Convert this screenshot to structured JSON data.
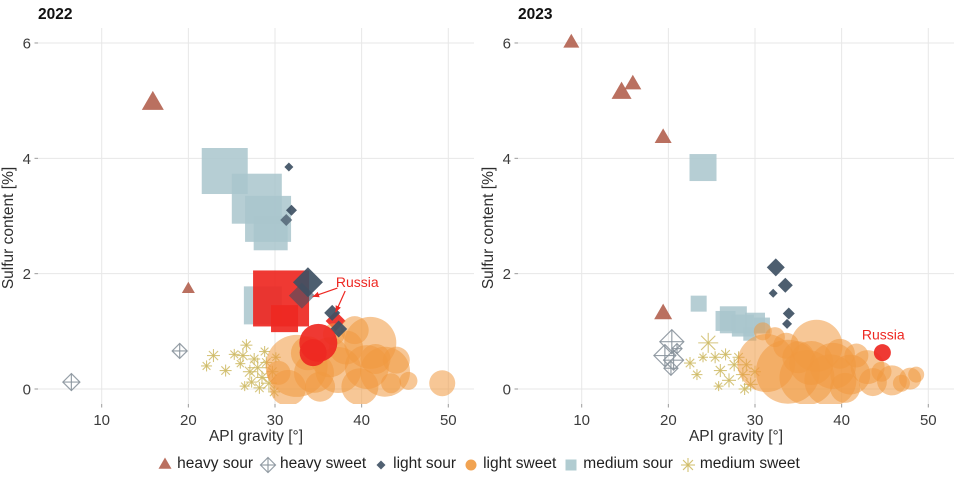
{
  "colors": {
    "heavy_sour": "#b2604f",
    "heavy_sweet": "#8b959d",
    "light_sour": "#3e5063",
    "light_sweet": "#f0993f",
    "medium_sour": "#a9c6cc",
    "medium_sweet": "#cfbb66",
    "russia": "#ee2822",
    "grid": "#e7e7e7",
    "tick": "#9a9a9a"
  },
  "legend": {
    "items": [
      {
        "label": "heavy sour",
        "marker": "triangle",
        "color_key": "heavy_sour"
      },
      {
        "label": "heavy sweet",
        "marker": "diamond-plus",
        "color_key": "heavy_sweet"
      },
      {
        "label": "light sour",
        "marker": "diamond",
        "color_key": "light_sour"
      },
      {
        "label": "light sweet",
        "marker": "circle",
        "color_key": "light_sweet"
      },
      {
        "label": "medium sour",
        "marker": "square",
        "color_key": "medium_sour"
      },
      {
        "label": "medium sweet",
        "marker": "asterisk",
        "color_key": "medium_sweet"
      }
    ]
  },
  "chart_data": [
    {
      "type": "scatter",
      "title": "2022",
      "xlabel": "API gravity [°]",
      "ylabel": "Sulfur content [%]",
      "xticks": [
        10,
        20,
        30,
        40,
        50
      ],
      "yticks": [
        0,
        2,
        4,
        6
      ],
      "xlim": [
        2.7,
        53
      ],
      "ylim": [
        -0.26,
        6.26
      ],
      "grid": true,
      "series": [
        {
          "name": "medium sour",
          "marker": "square",
          "color_key": "medium_sour",
          "opacity": 0.85,
          "points": [
            [
              24.2,
              3.78,
              46
            ],
            [
              27.9,
              3.3,
              50
            ],
            [
              29.2,
              2.95,
              46
            ],
            [
              29.5,
              2.7,
              34
            ],
            [
              28.6,
              1.45,
              38
            ]
          ]
        },
        {
          "name": "heavy sweet",
          "marker": "diamond-plus",
          "color_key": "heavy_sweet",
          "opacity": 0.9,
          "points": [
            [
              6.5,
              0.12,
              17
            ],
            [
              19.0,
              0.66,
              15
            ]
          ]
        },
        {
          "name": "heavy sour",
          "marker": "triangle",
          "color_key": "heavy_sour",
          "opacity": 0.9,
          "points": [
            [
              15.9,
              4.95,
              22
            ],
            [
              20.0,
              1.73,
              13
            ]
          ]
        },
        {
          "name": "medium sweet",
          "marker": "asterisk",
          "color_key": "medium_sweet",
          "opacity": 0.85,
          "points": [
            [
              22.9,
              0.58,
              13
            ],
            [
              22.1,
              0.4,
              11
            ],
            [
              24.3,
              0.32,
              12
            ],
            [
              25.3,
              0.6,
              11
            ],
            [
              26.3,
              0.58,
              13
            ],
            [
              26.7,
              0.76,
              12
            ],
            [
              26.0,
              0.44,
              10
            ],
            [
              27.1,
              0.3,
              14
            ],
            [
              27.6,
              0.52,
              12
            ],
            [
              28.0,
              0.37,
              20
            ],
            [
              28.5,
              0.2,
              13
            ],
            [
              29.0,
              0.46,
              12
            ],
            [
              29.3,
              0.1,
              16
            ],
            [
              29.7,
              0.3,
              12
            ],
            [
              28.2,
              0.02,
              12
            ],
            [
              27.3,
              0.12,
              11
            ],
            [
              30.1,
              0.55,
              10
            ],
            [
              29.9,
              -0.05,
              12
            ],
            [
              28.8,
              0.65,
              11
            ],
            [
              26.5,
              0.05,
              10
            ]
          ]
        },
        {
          "name": "light sweet",
          "marker": "circle",
          "color_key": "light_sweet",
          "opacity": 0.55,
          "points": [
            [
              32.5,
              0.4,
              62
            ],
            [
              37.3,
              0.33,
              46
            ],
            [
              41.0,
              0.8,
              52
            ],
            [
              39.2,
              1.02,
              28
            ],
            [
              42.7,
              0.3,
              50
            ],
            [
              39.8,
              0.04,
              37
            ],
            [
              35.2,
              0.04,
              30
            ],
            [
              31.5,
              0.02,
              36
            ],
            [
              33.8,
              0.62,
              34
            ],
            [
              36.3,
              0.55,
              40
            ],
            [
              44.0,
              0.5,
              27
            ],
            [
              45.4,
              0.14,
              18
            ],
            [
              49.3,
              0.1,
              26
            ],
            [
              30.4,
              0.28,
              24
            ],
            [
              38.2,
              0.72,
              34
            ],
            [
              41.6,
              0.52,
              30
            ],
            [
              43.4,
              0.1,
              20
            ],
            [
              36.8,
              0.95,
              22
            ],
            [
              34.5,
              0.28,
              40
            ],
            [
              40.6,
              0.38,
              44
            ]
          ]
        },
        {
          "name": "light sour",
          "marker": "diamond",
          "color_key": "light_sour",
          "opacity": 0.92,
          "points": [
            [
              31.6,
              3.85,
              9
            ],
            [
              31.9,
              3.1,
              11
            ],
            [
              31.3,
              2.93,
              12,
              0.7
            ],
            [
              33.8,
              1.85,
              30
            ],
            [
              33.1,
              1.62,
              26,
              0.6
            ],
            [
              36.6,
              1.32,
              16
            ],
            [
              37.35,
              1.04,
              17
            ]
          ]
        }
      ],
      "russia": {
        "label": "Russia",
        "color_key": "russia",
        "x": 39.5,
        "y": 1.84,
        "markers": [
          [
            "square",
            30.7,
            1.57,
            56
          ],
          [
            "square",
            31.1,
            1.22,
            27
          ],
          [
            "diamond",
            37.0,
            1.18,
            20
          ],
          [
            "circle",
            35.0,
            0.8,
            38
          ],
          [
            "circle",
            34.4,
            0.63,
            27
          ]
        ],
        "arrows": [
          [
            37.2,
            1.75,
            34.35,
            1.6
          ],
          [
            38.1,
            1.7,
            37.0,
            1.33
          ]
        ]
      }
    },
    {
      "type": "scatter",
      "title": "2023",
      "xlabel": "API gravity [°]",
      "ylabel": "Sulfur content [%]",
      "xticks": [
        10,
        20,
        30,
        40,
        50
      ],
      "yticks": [
        0,
        2,
        4,
        6
      ],
      "xlim": [
        2.7,
        53
      ],
      "ylim": [
        -0.26,
        6.26
      ],
      "grid": true,
      "series": [
        {
          "name": "medium sour",
          "marker": "square",
          "color_key": "medium_sour",
          "opacity": 0.85,
          "points": [
            [
              24.0,
              3.84,
              27
            ],
            [
              23.5,
              1.48,
              16
            ],
            [
              26.6,
              1.18,
              20
            ],
            [
              27.5,
              1.2,
              27
            ],
            [
              28.6,
              1.1,
              22
            ],
            [
              30.0,
              1.15,
              20
            ],
            [
              30.8,
              1.1,
              16
            ],
            [
              29.4,
              0.95,
              13
            ]
          ]
        },
        {
          "name": "heavy sweet",
          "marker": "diamond-plus",
          "color_key": "heavy_sweet",
          "opacity": 0.9,
          "points": [
            [
              20.4,
              0.82,
              24
            ],
            [
              19.6,
              0.58,
              22
            ],
            [
              20.6,
              0.5,
              20
            ],
            [
              20.3,
              0.36,
              14
            ],
            [
              21.0,
              0.7,
              10
            ]
          ]
        },
        {
          "name": "heavy sour",
          "marker": "triangle",
          "color_key": "heavy_sour",
          "opacity": 0.9,
          "points": [
            [
              8.8,
              6.0,
              16
            ],
            [
              14.6,
              5.13,
              20
            ],
            [
              15.9,
              5.28,
              17
            ],
            [
              19.4,
              4.35,
              17
            ],
            [
              19.4,
              1.3,
              18
            ]
          ]
        },
        {
          "name": "medium sweet",
          "marker": "asterisk",
          "color_key": "medium_sweet",
          "opacity": 0.85,
          "points": [
            [
              24.6,
              0.8,
              20
            ],
            [
              22.5,
              0.45,
              12
            ],
            [
              23.3,
              0.25,
              11
            ],
            [
              25.4,
              0.55,
              12
            ],
            [
              26.0,
              0.32,
              13
            ],
            [
              26.6,
              0.6,
              12
            ],
            [
              27.0,
              0.15,
              14
            ],
            [
              27.6,
              0.42,
              13
            ],
            [
              28.1,
              0.55,
              12
            ],
            [
              28.6,
              0.25,
              14
            ],
            [
              29.0,
              0.42,
              12
            ],
            [
              29.5,
              0.08,
              14
            ],
            [
              30.0,
              0.3,
              12
            ],
            [
              28.8,
              0.0,
              12
            ],
            [
              25.8,
              0.05,
              10
            ],
            [
              24.0,
              0.55,
              10
            ]
          ]
        },
        {
          "name": "light sweet",
          "marker": "circle",
          "color_key": "light_sweet",
          "opacity": 0.55,
          "points": [
            [
              31.3,
              0.45,
              58
            ],
            [
              33.8,
              0.3,
              64
            ],
            [
              36.0,
              0.2,
              55
            ],
            [
              37.1,
              0.75,
              52
            ],
            [
              38.7,
              0.15,
              52
            ],
            [
              39.8,
              0.61,
              30
            ],
            [
              41.7,
              0.58,
              24
            ],
            [
              41.0,
              0.25,
              40
            ],
            [
              43.0,
              0.38,
              34
            ],
            [
              43.6,
              0.12,
              28
            ],
            [
              45.8,
              0.15,
              30
            ],
            [
              46.9,
              0.1,
              17
            ],
            [
              47.9,
              0.18,
              22
            ],
            [
              48.6,
              0.25,
              16
            ],
            [
              30.9,
              1.0,
              18
            ],
            [
              32.3,
              0.9,
              20
            ],
            [
              33.6,
              0.75,
              26
            ],
            [
              35.0,
              0.55,
              32
            ],
            [
              40.4,
              0.02,
              30
            ],
            [
              44.6,
              0.3,
              20
            ],
            [
              36.5,
              0.45,
              44
            ],
            [
              39.0,
              0.4,
              46
            ]
          ]
        },
        {
          "name": "light sour",
          "marker": "diamond",
          "color_key": "light_sour",
          "opacity": 0.92,
          "points": [
            [
              32.4,
              2.11,
              18
            ],
            [
              33.5,
              1.8,
              15
            ],
            [
              32.1,
              1.66,
              9
            ],
            [
              33.9,
              1.31,
              12
            ],
            [
              33.7,
              1.13,
              10
            ]
          ]
        }
      ],
      "russia": {
        "label": "Russia",
        "color_key": "russia",
        "x": 44.8,
        "y": 0.93,
        "markers": [
          [
            "circle",
            44.7,
            0.63,
            17
          ]
        ],
        "arrows": []
      }
    }
  ]
}
